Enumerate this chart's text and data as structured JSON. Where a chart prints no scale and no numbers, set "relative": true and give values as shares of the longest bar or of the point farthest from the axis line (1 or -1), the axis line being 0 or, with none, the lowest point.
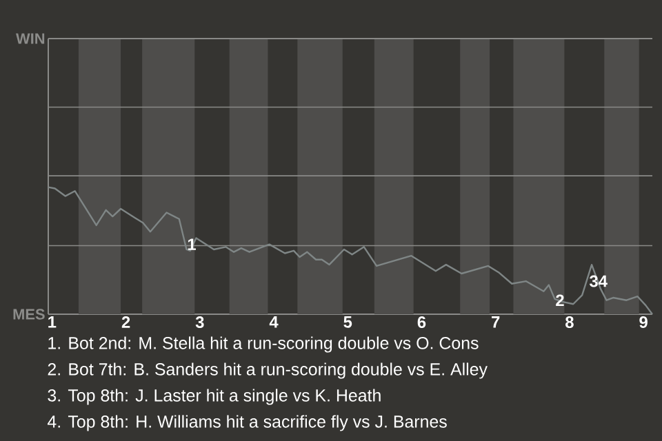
{
  "chart_data": {
    "type": "line",
    "relative": true,
    "x": [
      0.95,
      1.04,
      1.18,
      1.31,
      1.6,
      1.73,
      1.82,
      1.93,
      2.12,
      2.23,
      2.33,
      2.55,
      2.72,
      2.82,
      2.87,
      2.95,
      3.19,
      3.35,
      3.46,
      3.56,
      3.67,
      3.94,
      4.15,
      4.27,
      4.35,
      4.45,
      4.57,
      4.65,
      4.75,
      4.95,
      5.06,
      5.22,
      5.39,
      5.86,
      6.19,
      6.33,
      6.54,
      6.9,
      7.04,
      7.22,
      7.41,
      7.65,
      7.72,
      7.8,
      7.89,
      8.05,
      8.17,
      8.3,
      8.42,
      8.5,
      8.59,
      8.77,
      8.92,
      9.03,
      9.12
    ],
    "series": [
      {
        "color": "#7f8686",
        "values": [
          1,
          0.99,
          0.93,
          0.97,
          0.7,
          0.82,
          0.77,
          0.83,
          0.76,
          0.72,
          0.65,
          0.8,
          0.75,
          0.51,
          0.5,
          0.6,
          0.51,
          0.53,
          0.49,
          0.52,
          0.49,
          0.55,
          0.48,
          0.5,
          0.45,
          0.49,
          0.43,
          0.43,
          0.39,
          0.51,
          0.47,
          0.53,
          0.38,
          0.46,
          0.34,
          0.39,
          0.32,
          0.38,
          0.33,
          0.24,
          0.26,
          0.18,
          0.23,
          0.12,
          0.1,
          0.08,
          0.15,
          0.39,
          0.2,
          0.11,
          0.13,
          0.11,
          0.14,
          0.07,
          0
        ]
      }
    ],
    "xlim": [
      0.95,
      9.12
    ],
    "xticks": [
      1,
      2,
      3,
      4,
      5,
      6,
      7,
      8,
      9
    ],
    "ref_lines": [
      {
        "axis": "y",
        "value": 0.54,
        "color": "#8a8a88"
      },
      {
        "axis": "y",
        "value": 1.09,
        "color": "#8a8a88"
      },
      {
        "axis": "y",
        "value": 1.63,
        "color": "#8a8a88"
      }
    ],
    "bands": [
      {
        "axis": "x",
        "from": 1.36,
        "to": 1.93,
        "color": "#4e4d4b"
      },
      {
        "axis": "x",
        "from": 2.22,
        "to": 2.93,
        "color": "#4e4d4b"
      },
      {
        "axis": "x",
        "from": 3.4,
        "to": 3.92,
        "color": "#4e4d4b"
      },
      {
        "axis": "x",
        "from": 4.32,
        "to": 4.93,
        "color": "#4e4d4b"
      },
      {
        "axis": "x",
        "from": 5.36,
        "to": 5.89,
        "color": "#4e4d4b"
      },
      {
        "axis": "x",
        "from": 6.52,
        "to": 6.92,
        "color": "#4e4d4b"
      },
      {
        "axis": "x",
        "from": 7.24,
        "to": 7.93,
        "color": "#4e4d4b"
      },
      {
        "axis": "x",
        "from": 8.47,
        "to": 8.94,
        "color": "#4e4d4b"
      }
    ],
    "annotations": [
      {
        "text": "1",
        "x": 2.89,
        "y": 0.55
      },
      {
        "text": "2",
        "x": 7.87,
        "y": 0.11
      },
      {
        "text": "34",
        "x": 8.39,
        "y": 0.26
      },
      "WIN",
      "MES",
      "1. Bot 2nd: M. Stella hit a run-scoring double vs O. Cons",
      "2. Bot 7th: B. Sanders hit a run-scoring double vs E. Alley",
      "3. Top 8th: J. Laster hit a single vs K. Heath",
      "4. Top 8th: H. Williams hit a sacrifice fly vs J. Barnes"
    ]
  }
}
